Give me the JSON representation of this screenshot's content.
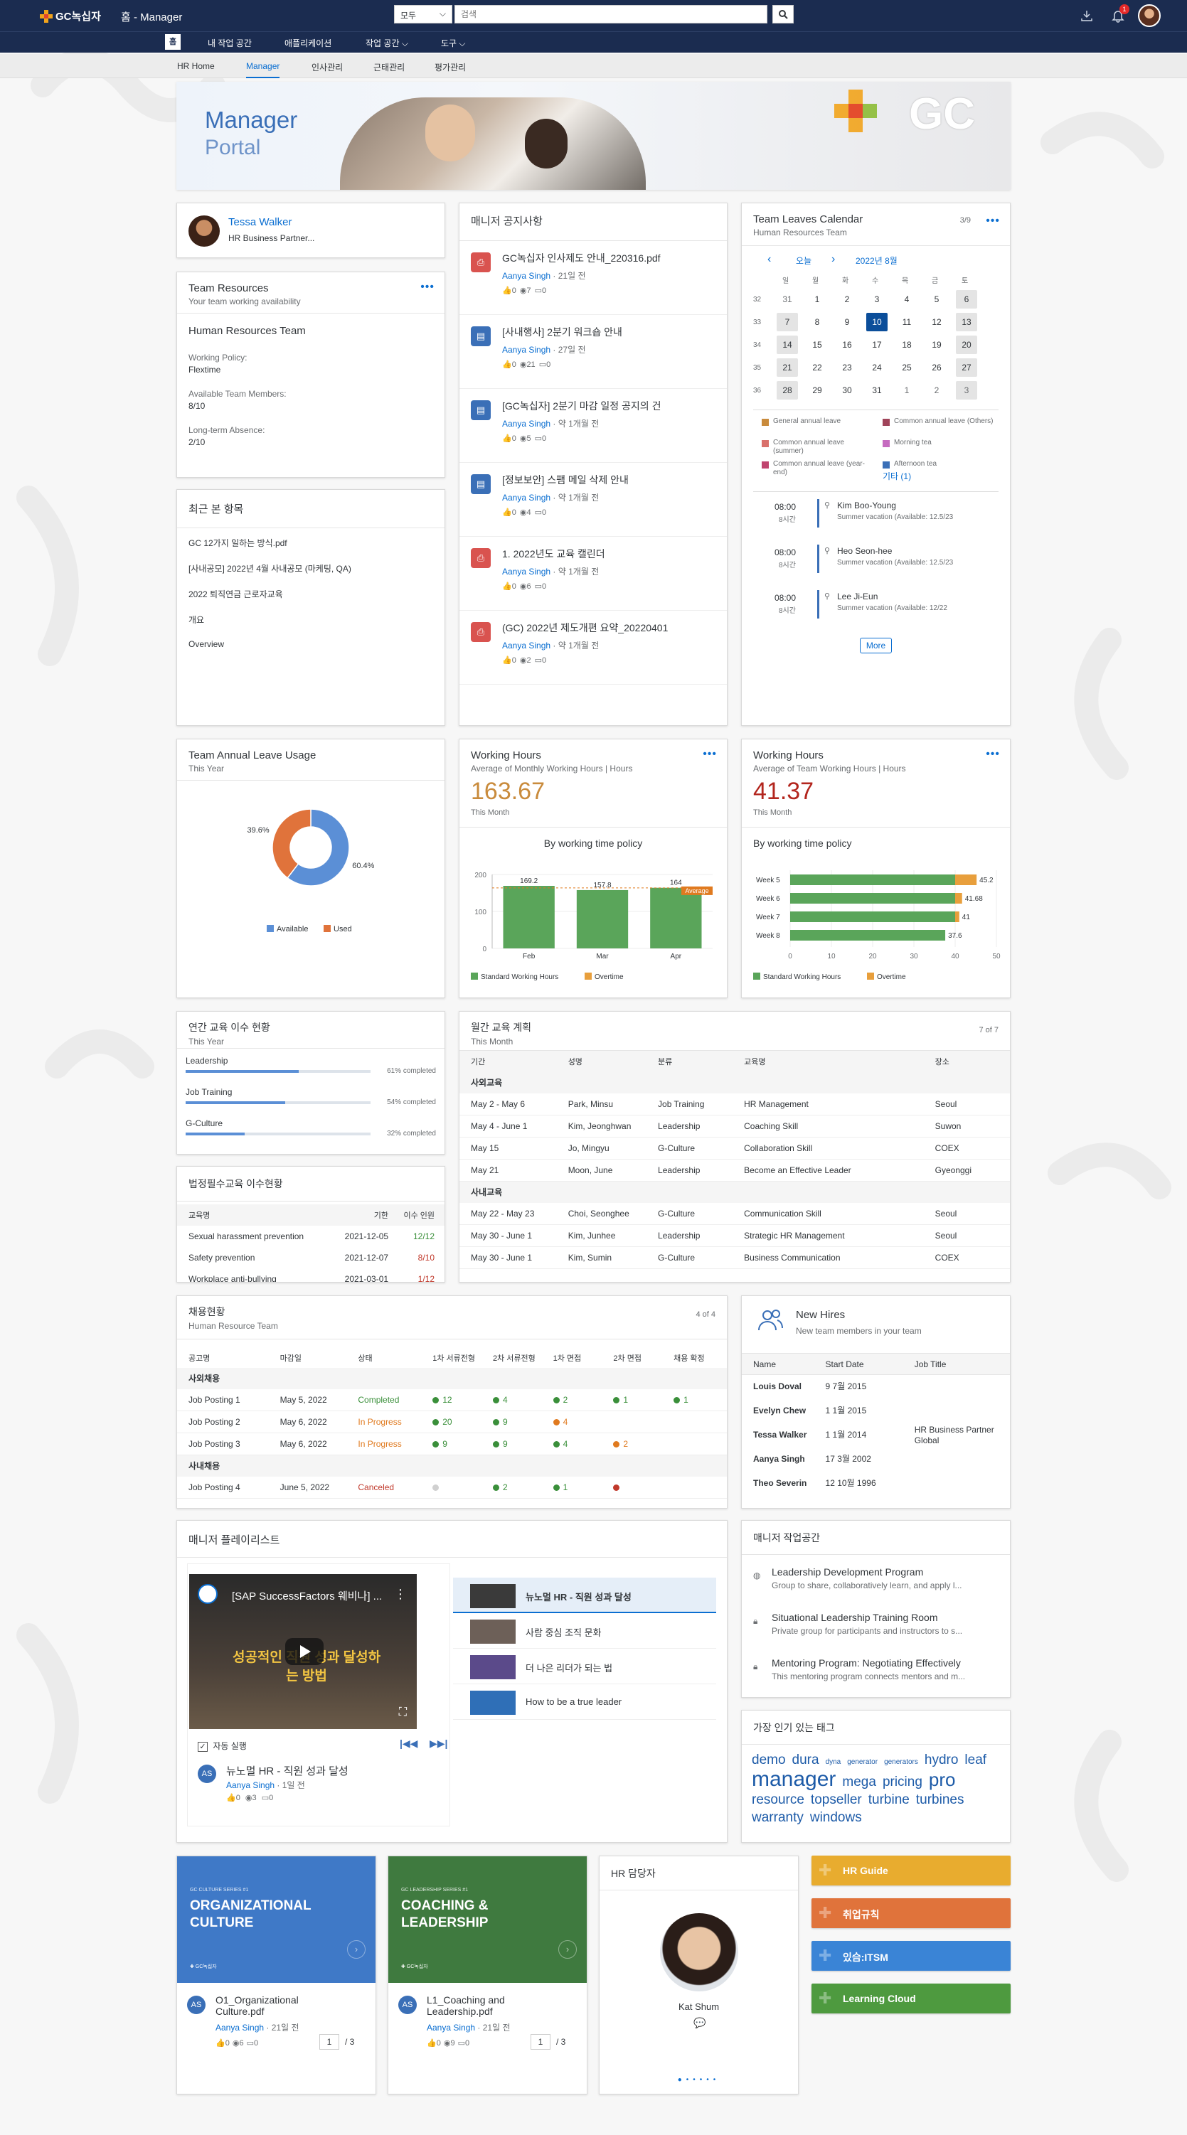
{
  "topbar": {
    "logo": "GC녹십자",
    "title": "홈 - Manager",
    "search_scope": "모두",
    "search_placeholder": "검색",
    "notif_count": "1"
  },
  "nav": {
    "home": "홈",
    "items": [
      "내 작업 공간",
      "애플리케이션",
      "작업 공간 ⌵",
      "도구 ⌵"
    ]
  },
  "subnav": {
    "items": [
      "HR Home",
      "Manager",
      "인사관리",
      "근태관리",
      "평가관리"
    ],
    "active": 1
  },
  "banner": {
    "title": "Manager",
    "subtitle": "Portal",
    "brand": "GC"
  },
  "profile": {
    "name": "Tessa Walker",
    "role": "HR Business Partner..."
  },
  "team_resources": {
    "title": "Team Resources",
    "subtitle": "Your team working availability",
    "team": "Human Resources Team",
    "policy_label": "Working Policy:",
    "policy": "Flextime",
    "avail_label": "Available Team Members:",
    "avail": "8/10",
    "absence_label": "Long-term Absence:",
    "absence": "2/10"
  },
  "recent": {
    "title": "최근 본 항목",
    "items": [
      "GC 12가지 일하는 방식.pdf",
      "[사내공모] 2022년 4월 사내공모 (마케팅, QA)",
      "2022 퇴직연금 근로자교육",
      "개요",
      "Overview"
    ]
  },
  "notices": {
    "title": "매니저 공지사항",
    "items": [
      {
        "title": "GC녹십자 인사제도 안내_220316.pdf",
        "author": "Aanya Singh",
        "time": " · 21일 전",
        "likes": "0",
        "views": "7",
        "comments": "0",
        "color": "#d9534f",
        "icon": "pdf"
      },
      {
        "title": "[사내행사] 2분기 워크숍 안내",
        "author": "Aanya Singh",
        "time": " · 27일 전",
        "likes": "0",
        "views": "21",
        "comments": "0",
        "color": "#3a6fb7",
        "icon": "doc"
      },
      {
        "title": "[GC녹십자] 2분기 마감 일정 공지의 건",
        "author": "Aanya Singh",
        "time": " · 약 1개월 전",
        "likes": "0",
        "views": "5",
        "comments": "0",
        "color": "#3a6fb7",
        "icon": "doc"
      },
      {
        "title": "[정보보안] 스팸 메일 삭제 안내",
        "author": "Aanya Singh",
        "time": " · 약 1개월 전",
        "likes": "0",
        "views": "4",
        "comments": "0",
        "color": "#3a6fb7",
        "icon": "doc"
      },
      {
        "title": "1. 2022년도 교육 캘린더",
        "author": "Aanya Singh",
        "time": " · 약 1개월 전",
        "likes": "0",
        "views": "6",
        "comments": "0",
        "color": "#d9534f",
        "icon": "pdf"
      },
      {
        "title": "(GC) 2022년 제도개편 요약_20220401",
        "author": "Aanya Singh",
        "time": " · 약 1개월 전",
        "likes": "0",
        "views": "2",
        "comments": "0",
        "color": "#d9534f",
        "icon": "pdf"
      }
    ]
  },
  "calendar": {
    "title": "Team Leaves Calendar",
    "subtitle": "Human Resources Team",
    "count": "3/9",
    "today": "오늘",
    "month": "2022년 8월",
    "weekdays": [
      "일",
      "월",
      "화",
      "수",
      "목",
      "금",
      "토"
    ],
    "weeks": [
      {
        "wk": "32",
        "days": [
          "31",
          "1",
          "2",
          "3",
          "4",
          "5",
          "6"
        ]
      },
      {
        "wk": "33",
        "days": [
          "7",
          "8",
          "9",
          "10",
          "11",
          "12",
          "13"
        ]
      },
      {
        "wk": "34",
        "days": [
          "14",
          "15",
          "16",
          "17",
          "18",
          "19",
          "20"
        ]
      },
      {
        "wk": "35",
        "days": [
          "21",
          "22",
          "23",
          "24",
          "25",
          "26",
          "27"
        ]
      },
      {
        "wk": "36",
        "days": [
          "28",
          "29",
          "30",
          "31",
          "1",
          "2",
          "3"
        ]
      }
    ],
    "legend": [
      {
        "label": "General annual leave",
        "color": "#c98b3c"
      },
      {
        "label": "Common annual leave (Others)",
        "color": "#a0445a"
      },
      {
        "label": "Common annual leave (summer)",
        "color": "#d9706b"
      },
      {
        "label": "Morning tea",
        "color": "#c66bc0"
      },
      {
        "label": "Common annual leave (year-end)",
        "color": "#c0446e"
      },
      {
        "label": "Afternoon tea",
        "color": "#3a6fb7"
      }
    ],
    "legend_more": "기타 (1)",
    "entries": [
      {
        "time": "08:00",
        "dur": "8시간",
        "name": "Kim Boo-Young",
        "detail": "Summer vacation (Available: 12.5/23"
      },
      {
        "time": "08:00",
        "dur": "8시간",
        "name": "Heo Seon-hee",
        "detail": "Summer vacation (Available: 12.5/23"
      },
      {
        "time": "08:00",
        "dur": "8시간",
        "name": "Lee Ji-Eun",
        "detail": "Summer vacation (Available: 12/22"
      }
    ],
    "more": "More"
  },
  "leave_usage": {
    "title": "Team Annual Leave Usage",
    "subtitle": "This Year"
  },
  "working_hours_1": {
    "title": "Working Hours",
    "subtitle": "Average of Monthly Working Hours | Hours",
    "value": "163.67",
    "period": "This Month",
    "chart_title": "By working time policy"
  },
  "working_hours_2": {
    "title": "Working Hours",
    "subtitle": "Average of Team Working Hours | Hours",
    "value": "41.37",
    "period": "This Month",
    "chart_title": "By working time policy"
  },
  "chart_data": [
    {
      "type": "pie",
      "title": "",
      "slices": [
        {
          "label": "Available",
          "value": 60.4,
          "color": "#5b8fd6"
        },
        {
          "label": "Used",
          "value": 39.6,
          "color": "#e0733b"
        }
      ]
    },
    {
      "type": "bar",
      "title": "By working time policy",
      "categories": [
        "Feb",
        "Mar",
        "Apr"
      ],
      "series": [
        {
          "name": "Standard Working Hours",
          "values": [
            169.2,
            157.8,
            164
          ],
          "color": "#5aa55a"
        },
        {
          "name": "Overtime",
          "values": [
            0,
            0,
            0
          ],
          "color": "#e89f3c"
        }
      ],
      "ylim": [
        0,
        200
      ],
      "yticks": [
        0,
        100,
        200
      ],
      "reference": {
        "label": "Average",
        "value": 163.67
      }
    },
    {
      "type": "bar",
      "orientation": "horizontal",
      "title": "By working time policy",
      "categories": [
        "Week 5",
        "Week 6",
        "Week 7",
        "Week 8"
      ],
      "series": [
        {
          "name": "Standard Working Hours",
          "values": [
            40,
            40,
            40,
            37.6
          ],
          "color": "#5aa55a"
        },
        {
          "name": "Overtime",
          "values": [
            5.2,
            1.68,
            1,
            0
          ],
          "color": "#e89f3c"
        }
      ],
      "totals": [
        45.2,
        41.68,
        41,
        37.6
      ],
      "xlim": [
        0,
        50
      ],
      "xticks": [
        0,
        10,
        20,
        30,
        40,
        50
      ]
    }
  ],
  "edu_status": {
    "title": "연간 교육 이수 현황",
    "subtitle": "This Year",
    "items": [
      {
        "label": "Leadership",
        "pct": 0.61,
        "text": "61% completed"
      },
      {
        "label": "Job Training",
        "pct": 0.54,
        "text": "54% completed"
      },
      {
        "label": "G-Culture",
        "pct": 0.32,
        "text": "32% completed"
      }
    ]
  },
  "mandatory": {
    "title": "법정필수교육 이수현황",
    "headers": [
      "교육명",
      "기한",
      "이수 인원"
    ],
    "rows": [
      {
        "name": "Sexual harassment prevention",
        "date": "2021-12-05",
        "count": "12/12",
        "color": "#3a8f3a"
      },
      {
        "name": "Safety prevention",
        "date": "2021-12-07",
        "count": "8/10",
        "color": "#c0392b"
      },
      {
        "name": "Workplace anti-bullying",
        "date": "2021-03-01",
        "count": "1/12",
        "color": "#c0392b"
      }
    ]
  },
  "monthly_plan": {
    "title": "월간 교육 계획",
    "subtitle": "This Month",
    "count": "7 of 7",
    "headers": [
      "기간",
      "성명",
      "분류",
      "교육명",
      "장소"
    ],
    "groups": [
      {
        "name": "사외교육",
        "rows": [
          [
            "May 2 - May 6",
            "Park, Minsu",
            "Job Training",
            "HR Management",
            "Seoul"
          ],
          [
            "May 4 - June 1",
            "Kim, Jeonghwan",
            "Leadership",
            "Coaching Skill",
            "Suwon"
          ],
          [
            "May 15",
            "Jo, Mingyu",
            "G-Culture",
            "Collaboration Skill",
            "COEX"
          ],
          [
            "May 21",
            "Moon, June",
            "Leadership",
            "Become an Effective Leader",
            "Gyeonggi"
          ]
        ]
      },
      {
        "name": "사내교육",
        "rows": [
          [
            "May 22 - May 23",
            "Choi, Seonghee",
            "G-Culture",
            "Communication Skill",
            "Seoul"
          ],
          [
            "May 30 - June 1",
            "Kim, Junhee",
            "Leadership",
            "Strategic HR Management",
            "Seoul"
          ],
          [
            "May 30 - June 1",
            "Kim, Sumin",
            "G-Culture",
            "Business Communication",
            "COEX"
          ]
        ]
      }
    ]
  },
  "recruit": {
    "title": "채용현황",
    "subtitle": "Human Resource Team",
    "count": "4 of 4",
    "headers": [
      "공고명",
      "마감일",
      "상태",
      "1차 서류전형",
      "2차 서류전형",
      "1차 면접",
      "2차 면접",
      "채용 확정"
    ],
    "groups": [
      {
        "name": "사외채용",
        "rows": [
          {
            "name": "Job Posting 1",
            "date": "May 5, 2022",
            "status": "Completed",
            "scolor": "#3a8f3a",
            "vals": [
              "12",
              "4",
              "2",
              "1",
              "1"
            ],
            "colors": [
              "#3a8f3a",
              "#3a8f3a",
              "#3a8f3a",
              "#3a8f3a",
              "#3a8f3a"
            ]
          },
          {
            "name": "Job Posting 2",
            "date": "May 6, 2022",
            "status": "In Progress",
            "scolor": "#e07a1f",
            "vals": [
              "20",
              "9",
              "4",
              "",
              ""
            ],
            "colors": [
              "#3a8f3a",
              "#3a8f3a",
              "#e07a1f",
              "",
              ""
            ]
          },
          {
            "name": "Job Posting 3",
            "date": "May 6, 2022",
            "status": "In Progress",
            "scolor": "#e07a1f",
            "vals": [
              "9",
              "9",
              "4",
              "2",
              ""
            ],
            "colors": [
              "#3a8f3a",
              "#3a8f3a",
              "#3a8f3a",
              "#e07a1f",
              ""
            ]
          }
        ]
      },
      {
        "name": "사내채용",
        "rows": [
          {
            "name": "Job Posting 4",
            "date": "June 5, 2022",
            "status": "Canceled",
            "scolor": "#c0392b",
            "vals": [
              "",
              "2",
              "1",
              "",
              ""
            ],
            "colors": [
              "#d0d0d0",
              "#3a8f3a",
              "#3a8f3a",
              "#c0392b",
              ""
            ]
          }
        ]
      }
    ]
  },
  "new_hires": {
    "title": "New Hires",
    "subtitle": "New team members in your team",
    "headers": [
      "Name",
      "Start Date",
      "Job Title"
    ],
    "rows": [
      [
        "Louis Doval",
        "9 7월 2015",
        ""
      ],
      [
        "Evelyn Chew",
        "1 1월 2015",
        ""
      ],
      [
        "Tessa Walker",
        "1 1월 2014",
        "HR Business Partner Global"
      ],
      [
        "Aanya Singh",
        "17 3월 2002",
        ""
      ],
      [
        "Theo Severin",
        "12 10월 1996",
        ""
      ]
    ]
  },
  "playlist": {
    "title": "매니저 플레이리스트",
    "video_title": "[SAP SuccessFactors 웨비나] ...",
    "video_text": "성공적인 직원 성과 달성하는 방법",
    "autoplay": "자동 실행",
    "current": "뉴노멀 HR - 직원 성과 달성",
    "author": "Aanya Singh",
    "time": " · 1일 전",
    "likes": "0",
    "views": "3",
    "comments": "0",
    "items": [
      "뉴노멀 HR - 직원 성과 달성",
      "사람 중심 조직 문화",
      "더 나은 리더가 되는 법",
      "How to be a true leader"
    ]
  },
  "workspace": {
    "title": "매니저 작업공간",
    "items": [
      {
        "title": "Leadership Development Program",
        "desc": "Group to share, collaboratively learn, and apply l..."
      },
      {
        "title": "Situational Leadership Training Room",
        "desc": "Private group for participants and instructors to s..."
      },
      {
        "title": "Mentoring Program: Negotiating Effectively",
        "desc": "This mentoring program connects mentors and m..."
      }
    ]
  },
  "tags": {
    "title": "가장 인기 있는 태그",
    "words": [
      {
        "t": "demo",
        "s": 19
      },
      {
        "t": "dura",
        "s": 19
      },
      {
        "t": "dyna",
        "s": 10
      },
      {
        "t": "generator",
        "s": 10
      },
      {
        "t": "generators",
        "s": 10
      },
      {
        "t": "hydro",
        "s": 19
      },
      {
        "t": "leaf",
        "s": 19
      },
      {
        "t": "manager",
        "s": 30
      },
      {
        "t": "mega",
        "s": 19
      },
      {
        "t": "pricing",
        "s": 19
      },
      {
        "t": "pro",
        "s": 26
      },
      {
        "t": "resource",
        "s": 19
      },
      {
        "t": "topseller",
        "s": 19
      },
      {
        "t": "turbine",
        "s": 19
      },
      {
        "t": "turbines",
        "s": 19
      },
      {
        "t": "warranty",
        "s": 19
      },
      {
        "t": "windows",
        "s": 19
      }
    ]
  },
  "docs": [
    {
      "series": "GC CULTURE SERIES #1",
      "cover": "ORGANIZATIONAL CULTURE",
      "color": "#3f79c7",
      "file": "O1_Organizational Culture.pdf",
      "author": "Aanya Singh",
      "time": " · 21일 전",
      "likes": "0",
      "views": "6",
      "comments": "0",
      "page": "1",
      "pages": "/ 3"
    },
    {
      "series": "GC LEADERSHIP SERIES #1",
      "cover": "COACHING & LEADERSHIP",
      "color": "#3f7a3f",
      "file": "L1_Coaching and Leadership.pdf",
      "author": "Aanya Singh",
      "time": " · 21일 전",
      "likes": "0",
      "views": "9",
      "comments": "0",
      "page": "1",
      "pages": "/ 3"
    }
  ],
  "hr_contact": {
    "title": "HR 담당자",
    "name": "Kat Shum"
  },
  "quick_links": [
    {
      "label": "HR Guide",
      "color": "#e8ac2f"
    },
    {
      "label": "취업규칙",
      "color": "#e0733b"
    },
    {
      "label": "있슴:ITSM",
      "color": "#3a84d6"
    },
    {
      "label": "Learning Cloud",
      "color": "#4e9a3f"
    }
  ]
}
